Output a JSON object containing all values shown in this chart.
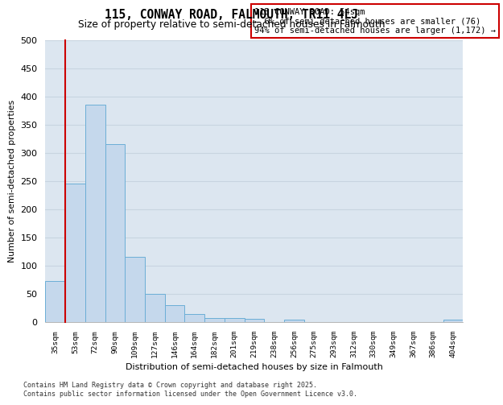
{
  "title_line1": "115, CONWAY ROAD, FALMOUTH, TR11 4LJ",
  "title_line2": "Size of property relative to semi-detached houses in Falmouth",
  "xlabel": "Distribution of semi-detached houses by size in Falmouth",
  "ylabel": "Number of semi-detached properties",
  "categories": [
    "35sqm",
    "53sqm",
    "72sqm",
    "90sqm",
    "109sqm",
    "127sqm",
    "146sqm",
    "164sqm",
    "182sqm",
    "201sqm",
    "219sqm",
    "238sqm",
    "256sqm",
    "275sqm",
    "293sqm",
    "312sqm",
    "330sqm",
    "349sqm",
    "367sqm",
    "386sqm",
    "404sqm"
  ],
  "values": [
    72,
    245,
    385,
    315,
    115,
    50,
    30,
    14,
    6,
    6,
    5,
    0,
    4,
    0,
    0,
    0,
    0,
    0,
    0,
    0,
    3
  ],
  "bar_color": "#c5d8ec",
  "bar_edge_color": "#6baed6",
  "vline_color": "#cc0000",
  "vline_x": 0.5,
  "annotation_title": "115 CONWAY ROAD: 54sqm",
  "annotation_line2": "← 6% of semi-detached houses are smaller (76)",
  "annotation_line3": "94% of semi-detached houses are larger (1,172) →",
  "annotation_box_edgecolor": "#cc0000",
  "annotation_bg": "#ffffff",
  "ylim": [
    0,
    500
  ],
  "yticks": [
    0,
    50,
    100,
    150,
    200,
    250,
    300,
    350,
    400,
    450,
    500
  ],
  "grid_color": "#c8d4e0",
  "plot_bg_color": "#dce6f0",
  "footer_line1": "Contains HM Land Registry data © Crown copyright and database right 2025.",
  "footer_line2": "Contains public sector information licensed under the Open Government Licence v3.0."
}
